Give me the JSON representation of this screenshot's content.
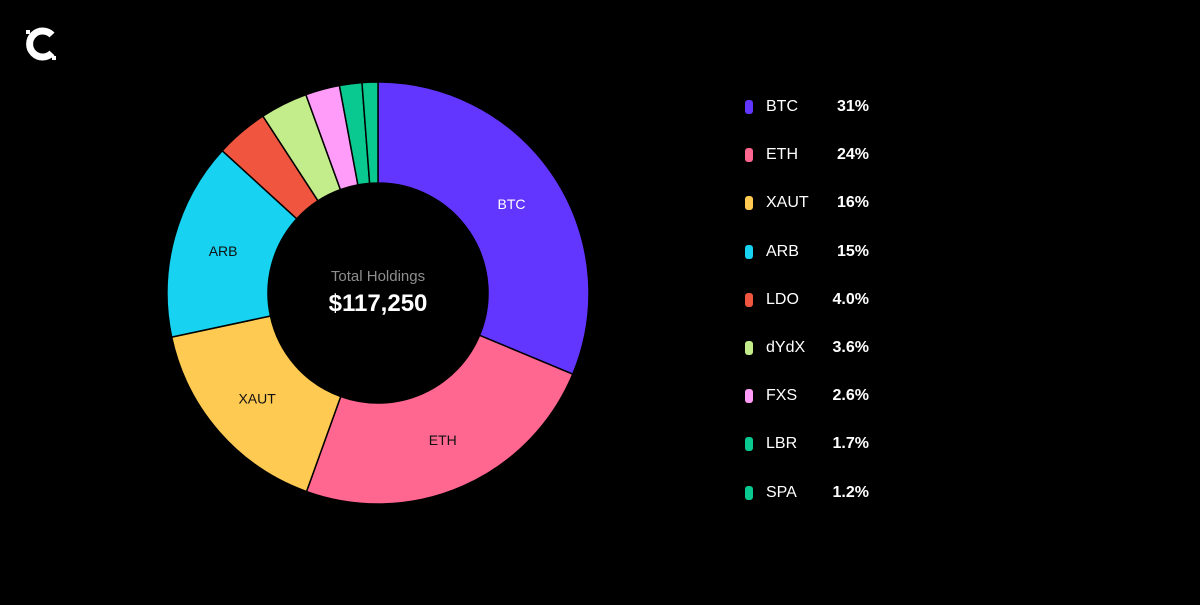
{
  "brand": {
    "logo_icon": "c-logo-icon"
  },
  "chart_data": {
    "type": "pie",
    "donut": true,
    "center_title": "Total Holdings",
    "center_value": "$117,250",
    "categories": [
      "BTC",
      "ETH",
      "XAUT",
      "ARB",
      "LDO",
      "dYdX",
      "FXS",
      "LBR",
      "SPA"
    ],
    "values": [
      31,
      24,
      16,
      15,
      4.0,
      3.6,
      2.6,
      1.7,
      1.2
    ],
    "value_labels": [
      "31%",
      "24%",
      "16%",
      "15%",
      "4.0%",
      "3.6%",
      "2.6%",
      "1.7%",
      "1.2%"
    ],
    "slice_labels": [
      "BTC",
      "ETH",
      "XAUT",
      "ARB",
      "",
      "",
      "",
      "",
      ""
    ],
    "colors": [
      "#6236ff",
      "#ff6690",
      "#ffca52",
      "#17d2f0",
      "#f0553f",
      "#c3ec8b",
      "#ff9cf9",
      "#09c990",
      "#09c990"
    ],
    "legend_position": "right"
  }
}
